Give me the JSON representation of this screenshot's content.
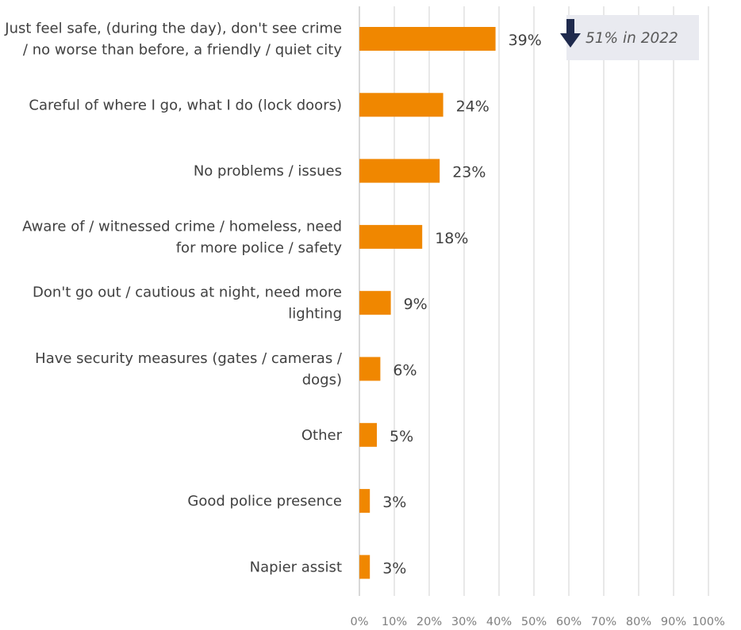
{
  "chart_data": {
    "type": "bar",
    "orientation": "horizontal",
    "categories": [
      [
        "Just feel safe, (during the day), don't see crime",
        "/ no worse than before, a friendly / quiet city"
      ],
      [
        "Careful of where I go, what I do (lock doors)"
      ],
      [
        "No problems / issues"
      ],
      [
        "Aware of / witnessed crime / homeless, need",
        "for more police / safety"
      ],
      [
        "Don't go out / cautious at night, need more",
        "lighting"
      ],
      [
        "Have security measures (gates / cameras /",
        "dogs)"
      ],
      [
        "Other"
      ],
      [
        "Good police presence"
      ],
      [
        "Napier assist"
      ]
    ],
    "values": [
      39,
      24,
      23,
      18,
      9,
      6,
      5,
      3,
      3
    ],
    "value_labels": [
      "39%",
      "24%",
      "23%",
      "18%",
      "9%",
      "6%",
      "5%",
      "3%",
      "3%"
    ],
    "xlim": [
      0,
      100
    ],
    "xticks": [
      "0%",
      "10%",
      "20%",
      "30%",
      "40%",
      "50%",
      "60%",
      "70%",
      "80%",
      "90%",
      "100%"
    ],
    "grid": true,
    "bar_color": "#f08700",
    "annotation": {
      "text": "51% in 2022",
      "icon": "down-arrow-icon",
      "icon_color": "#1f2a4d",
      "box_color": "#e9eaf0",
      "applies_to_category_index": 0
    }
  }
}
